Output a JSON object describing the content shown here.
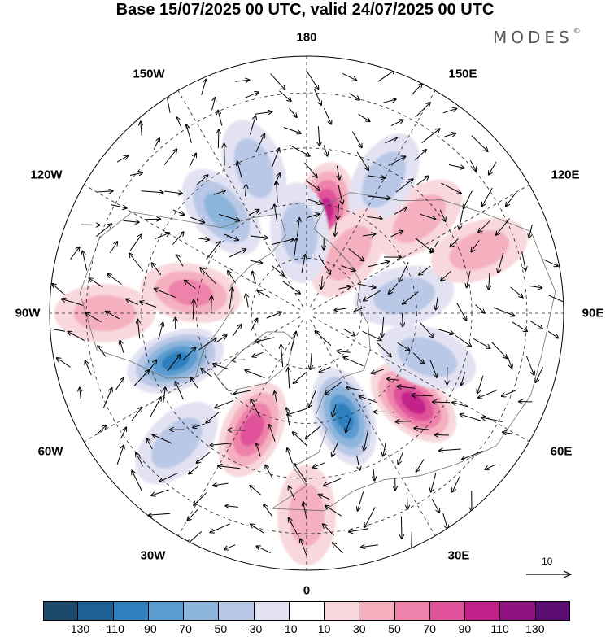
{
  "title": "Base 15/07/2025 00 UTC, valid 24/07/2025 00 UTC",
  "brand": "MODES",
  "brand_mark": "©",
  "longitude_labels": {
    "top": "180",
    "bottom": "0",
    "left": "90W",
    "right": "90E",
    "upper_left_1": "150W",
    "upper_left_2": "120W",
    "lower_left_1": "60W",
    "lower_left_2": "30W",
    "upper_right_1": "150E",
    "upper_right_2": "120E",
    "lower_right_1": "60E",
    "lower_right_2": "30E"
  },
  "reference_vector": {
    "value": "10",
    "icon": "arrow-right-icon"
  },
  "colorbar": {
    "ticks": [
      "-130",
      "-110",
      "-90",
      "-70",
      "-50",
      "-30",
      "-10",
      "10",
      "30",
      "50",
      "70",
      "90",
      "110",
      "130"
    ],
    "colors": [
      "#1d4a6b",
      "#1f5f92",
      "#2f7fbd",
      "#5a9cd0",
      "#8db5dc",
      "#b9c8e6",
      "#e2e2f2",
      "#ffffff",
      "#f8d8dc",
      "#f5b0c0",
      "#ee82aa",
      "#e0529a",
      "#c2218a",
      "#8e1280",
      "#5b0d74"
    ]
  },
  "anomaly_centers": [
    {
      "lon": 170,
      "lat": 62,
      "value": 90
    },
    {
      "lon": -160,
      "lat": 48,
      "value": -40
    },
    {
      "lon": -140,
      "lat": 54,
      "value": -60
    },
    {
      "lon": -100,
      "lat": 58,
      "value": 60
    },
    {
      "lon": -70,
      "lat": 52,
      "value": -90
    },
    {
      "lon": -25,
      "lat": 55,
      "value": 80
    },
    {
      "lon": 20,
      "lat": 60,
      "value": -90
    },
    {
      "lon": 50,
      "lat": 52,
      "value": 90
    },
    {
      "lon": 70,
      "lat": 55,
      "value": -40
    },
    {
      "lon": 100,
      "lat": 63,
      "value": -40
    },
    {
      "lon": 130,
      "lat": 50,
      "value": 40
    },
    {
      "lon": 110,
      "lat": 40,
      "value": 40
    },
    {
      "lon": 150,
      "lat": 48,
      "value": -30
    },
    {
      "lon": 145,
      "lat": 70,
      "value": 30
    },
    {
      "lon": -175,
      "lat": 68,
      "value": -40
    },
    {
      "lon": -90,
      "lat": 35,
      "value": 30
    },
    {
      "lon": -45,
      "lat": 40,
      "value": -30
    },
    {
      "lon": 0,
      "lat": 35,
      "value": 30
    }
  ]
}
